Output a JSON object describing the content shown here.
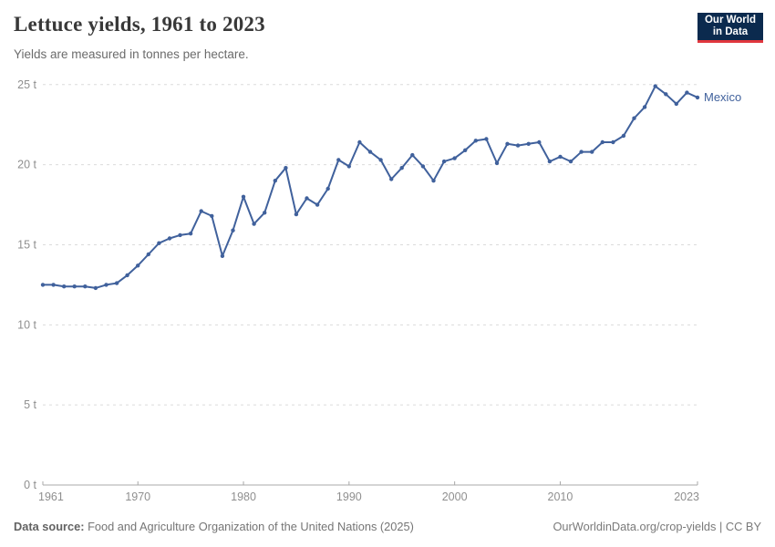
{
  "header": {
    "title": "Lettuce yields, 1961 to 2023",
    "subtitle": "Yields are measured in tonnes per hectare."
  },
  "logo": {
    "line1": "Our World",
    "line2": "in Data",
    "bg_color": "#0b2a4e",
    "accent_color": "#e0373e"
  },
  "chart_data": {
    "type": "line",
    "title": "Lettuce yields, 1961 to 2023",
    "subtitle": "Yields are measured in tonnes per hectare.",
    "unit": "tonnes per hectare",
    "grid": "horizontal-dashed",
    "legend_position": "end-of-line-label",
    "xlim": [
      1961,
      2023
    ],
    "ylim": [
      0,
      25
    ],
    "x_ticks": [
      1961,
      1970,
      1980,
      1990,
      2000,
      2010,
      2023
    ],
    "y_ticks": [
      {
        "value": 0,
        "label": "0 t"
      },
      {
        "value": 5,
        "label": "5 t"
      },
      {
        "value": 10,
        "label": "10 t"
      },
      {
        "value": 15,
        "label": "15 t"
      },
      {
        "value": 20,
        "label": "20 t"
      },
      {
        "value": 25,
        "label": "25 t"
      }
    ],
    "series": [
      {
        "name": "Mexico",
        "color": "#40619c",
        "x": [
          1961,
          1962,
          1963,
          1964,
          1965,
          1966,
          1967,
          1968,
          1969,
          1970,
          1971,
          1972,
          1973,
          1974,
          1975,
          1976,
          1977,
          1978,
          1979,
          1980,
          1981,
          1982,
          1983,
          1984,
          1985,
          1986,
          1987,
          1988,
          1989,
          1990,
          1991,
          1992,
          1993,
          1994,
          1995,
          1996,
          1997,
          1998,
          1999,
          2000,
          2001,
          2002,
          2003,
          2004,
          2005,
          2006,
          2007,
          2008,
          2009,
          2010,
          2011,
          2012,
          2013,
          2014,
          2015,
          2016,
          2017,
          2018,
          2019,
          2020,
          2021,
          2022,
          2023
        ],
        "values": [
          12.5,
          12.5,
          12.4,
          12.4,
          12.4,
          12.3,
          12.5,
          12.6,
          13.1,
          13.7,
          14.4,
          15.1,
          15.4,
          15.6,
          15.7,
          17.1,
          16.8,
          14.3,
          15.9,
          18.0,
          16.3,
          17.0,
          19.0,
          19.8,
          16.9,
          17.9,
          17.5,
          18.5,
          20.3,
          19.9,
          21.4,
          20.8,
          20.3,
          19.1,
          19.8,
          20.6,
          19.9,
          19.0,
          20.2,
          20.4,
          20.9,
          21.5,
          21.6,
          20.1,
          21.3,
          21.2,
          21.3,
          21.4,
          20.2,
          20.5,
          20.2,
          20.8,
          20.8,
          21.4,
          21.4,
          21.8,
          22.9,
          23.6,
          24.9,
          24.4,
          23.8,
          24.5,
          24.2
        ]
      }
    ],
    "style": {
      "gridline_color": "#dbdbdb",
      "axis_color": "#a8a8a8",
      "tick_label_color": "#8f8f8f"
    }
  },
  "footer": {
    "source_label": "Data source:",
    "source_text": " Food and Agriculture Organization of the United Nations (2025)",
    "credit": "OurWorldinData.org/crop-yields | CC BY"
  }
}
